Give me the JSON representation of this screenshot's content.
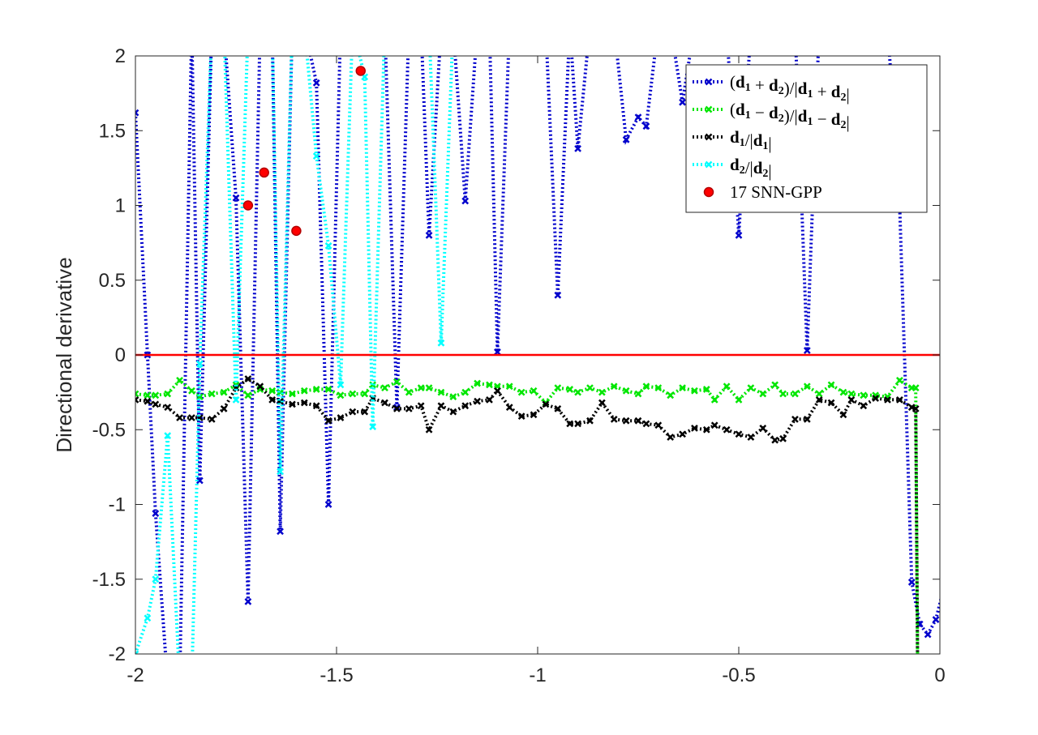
{
  "chart_data": {
    "type": "line",
    "title": "",
    "xlabel": "",
    "ylabel": "Directional derivative",
    "xlim": [
      -2,
      0
    ],
    "ylim": [
      -2,
      2
    ],
    "xticks": [
      -2,
      -1.5,
      -1,
      -0.5,
      0
    ],
    "xtick_labels": [
      "-2",
      "-1.5",
      "-1",
      "-0.5",
      "0"
    ],
    "yticks": [
      -2,
      -1.5,
      -1,
      -0.5,
      0,
      0.5,
      1,
      1.5,
      2
    ],
    "ytick_labels": [
      "-2",
      "-1.5",
      "-1",
      "-0.5",
      "0",
      "0.5",
      "1",
      "1.5",
      "2"
    ],
    "grid": false,
    "legend_position": "top-right",
    "series": [
      {
        "name": "(d1 + d2)/|d1 + d2|",
        "color": "#0000cc",
        "line_style": "dotted",
        "marker": "x",
        "x": [
          -2.0,
          -1.97,
          -1.95,
          -1.92,
          -1.89,
          -1.86,
          -1.84,
          -1.81,
          -1.78,
          -1.75,
          -1.72,
          -1.69,
          -1.66,
          -1.64,
          -1.61,
          -1.58,
          -1.55,
          -1.52,
          -1.49,
          -1.46,
          -1.43,
          -1.41,
          -1.38,
          -1.35,
          -1.32,
          -1.29,
          -1.27,
          -1.24,
          -1.21,
          -1.18,
          -1.15,
          -1.12,
          -1.1,
          -1.07,
          -1.04,
          -1.01,
          -0.98,
          -0.95,
          -0.92,
          -0.9,
          -0.87,
          -0.84,
          -0.81,
          -0.78,
          -0.75,
          -0.73,
          -0.7,
          -0.67,
          -0.64,
          -0.61,
          -0.58,
          -0.56,
          -0.53,
          -0.5,
          -0.47,
          -0.44,
          -0.41,
          -0.39,
          -0.36,
          -0.33,
          -0.3,
          -0.27,
          -0.24,
          -0.22,
          -0.19,
          -0.16,
          -0.13,
          -0.1,
          -0.07,
          -0.05,
          -0.03,
          -0.01,
          0.02
        ],
        "y": [
          1.62,
          0.0,
          -1.06,
          -2.2,
          -2.2,
          2.2,
          -0.84,
          2.2,
          2.2,
          1.05,
          -1.65,
          2.2,
          2.2,
          -1.18,
          2.2,
          2.2,
          1.82,
          -1.0,
          2.2,
          2.2,
          2.2,
          2.2,
          2.2,
          -0.35,
          2.2,
          2.2,
          0.8,
          2.2,
          2.2,
          1.03,
          2.2,
          2.2,
          0.02,
          2.2,
          2.2,
          2.2,
          2.2,
          0.4,
          2.2,
          1.38,
          2.2,
          2.2,
          2.2,
          1.44,
          1.59,
          1.53,
          2.2,
          2.2,
          1.69,
          2.2,
          2.2,
          2.2,
          2.2,
          0.8,
          2.2,
          2.2,
          2.2,
          2.2,
          2.2,
          0.03,
          2.2,
          2.2,
          2.2,
          2.2,
          2.2,
          2.2,
          2.2,
          1.0,
          -1.52,
          -1.8,
          -1.87,
          -1.77,
          -1.45
        ]
      },
      {
        "name": "(d1 - d2)/|d1 - d2|",
        "color": "#00e600",
        "line_style": "dotted",
        "marker": "x",
        "x": [
          -2.0,
          -1.97,
          -1.95,
          -1.92,
          -1.89,
          -1.86,
          -1.84,
          -1.81,
          -1.78,
          -1.75,
          -1.72,
          -1.69,
          -1.66,
          -1.64,
          -1.61,
          -1.58,
          -1.55,
          -1.52,
          -1.49,
          -1.46,
          -1.43,
          -1.41,
          -1.38,
          -1.35,
          -1.32,
          -1.29,
          -1.27,
          -1.24,
          -1.21,
          -1.18,
          -1.15,
          -1.12,
          -1.1,
          -1.07,
          -1.04,
          -1.01,
          -0.98,
          -0.95,
          -0.92,
          -0.9,
          -0.87,
          -0.84,
          -0.81,
          -0.78,
          -0.75,
          -0.73,
          -0.7,
          -0.67,
          -0.64,
          -0.61,
          -0.58,
          -0.56,
          -0.53,
          -0.5,
          -0.47,
          -0.44,
          -0.41,
          -0.39,
          -0.36,
          -0.33,
          -0.3,
          -0.27,
          -0.24,
          -0.22,
          -0.19,
          -0.16,
          -0.13,
          -0.1,
          -0.07,
          -0.06,
          -0.055
        ],
        "y": [
          -0.26,
          -0.27,
          -0.27,
          -0.26,
          -0.17,
          -0.24,
          -0.28,
          -0.26,
          -0.25,
          -0.2,
          -0.27,
          -0.23,
          -0.24,
          -0.25,
          -0.26,
          -0.24,
          -0.23,
          -0.23,
          -0.27,
          -0.26,
          -0.26,
          -0.2,
          -0.22,
          -0.18,
          -0.25,
          -0.22,
          -0.22,
          -0.25,
          -0.28,
          -0.25,
          -0.19,
          -0.2,
          -0.21,
          -0.21,
          -0.25,
          -0.24,
          -0.32,
          -0.22,
          -0.23,
          -0.25,
          -0.22,
          -0.25,
          -0.21,
          -0.24,
          -0.26,
          -0.21,
          -0.22,
          -0.27,
          -0.22,
          -0.24,
          -0.23,
          -0.3,
          -0.21,
          -0.3,
          -0.22,
          -0.26,
          -0.2,
          -0.26,
          -0.26,
          -0.21,
          -0.26,
          -0.2,
          -0.25,
          -0.26,
          -0.27,
          -0.27,
          -0.28,
          -0.17,
          -0.22,
          -0.22,
          -2.2
        ]
      },
      {
        "name": "d1/|d1|",
        "color": "#000000",
        "line_style": "dotted",
        "marker": "x",
        "x": [
          -2.0,
          -1.97,
          -1.95,
          -1.92,
          -1.89,
          -1.86,
          -1.84,
          -1.81,
          -1.78,
          -1.75,
          -1.72,
          -1.69,
          -1.66,
          -1.64,
          -1.61,
          -1.58,
          -1.55,
          -1.52,
          -1.49,
          -1.46,
          -1.43,
          -1.41,
          -1.38,
          -1.35,
          -1.32,
          -1.29,
          -1.27,
          -1.24,
          -1.21,
          -1.18,
          -1.15,
          -1.12,
          -1.1,
          -1.07,
          -1.04,
          -1.01,
          -0.98,
          -0.95,
          -0.92,
          -0.9,
          -0.87,
          -0.84,
          -0.81,
          -0.78,
          -0.75,
          -0.73,
          -0.7,
          -0.67,
          -0.64,
          -0.61,
          -0.58,
          -0.56,
          -0.53,
          -0.5,
          -0.47,
          -0.44,
          -0.41,
          -0.39,
          -0.36,
          -0.33,
          -0.3,
          -0.27,
          -0.24,
          -0.22,
          -0.19,
          -0.16,
          -0.13,
          -0.1,
          -0.07,
          -0.06,
          -0.055
        ],
        "y": [
          -0.3,
          -0.31,
          -0.33,
          -0.35,
          -0.42,
          -0.42,
          -0.42,
          -0.43,
          -0.36,
          -0.22,
          -0.16,
          -0.21,
          -0.3,
          -0.31,
          -0.33,
          -0.32,
          -0.34,
          -0.44,
          -0.42,
          -0.38,
          -0.38,
          -0.29,
          -0.32,
          -0.36,
          -0.36,
          -0.34,
          -0.5,
          -0.34,
          -0.38,
          -0.34,
          -0.31,
          -0.3,
          -0.24,
          -0.35,
          -0.41,
          -0.4,
          -0.33,
          -0.36,
          -0.46,
          -0.46,
          -0.44,
          -0.32,
          -0.43,
          -0.44,
          -0.44,
          -0.46,
          -0.47,
          -0.55,
          -0.53,
          -0.49,
          -0.5,
          -0.47,
          -0.5,
          -0.53,
          -0.55,
          -0.49,
          -0.57,
          -0.56,
          -0.43,
          -0.43,
          -0.3,
          -0.32,
          -0.4,
          -0.3,
          -0.34,
          -0.29,
          -0.3,
          -0.3,
          -0.35,
          -0.36,
          -2.2
        ]
      },
      {
        "name": "d2/|d2|",
        "color": "#00ffff",
        "line_style": "dotted",
        "marker": "x",
        "x": [
          -2.0,
          -1.97,
          -1.95,
          -1.92,
          -1.89,
          -1.86,
          -1.84,
          -1.81,
          -1.78,
          -1.75,
          -1.72,
          -1.69,
          -1.66,
          -1.64,
          -1.61,
          -1.58,
          -1.55,
          -1.52,
          -1.49,
          -1.46,
          -1.43,
          -1.41,
          -1.38,
          -1.35,
          -1.32,
          -1.29,
          -1.27,
          -1.24,
          -1.21,
          -1.18,
          -1.15,
          -1.12,
          -1.1
        ],
        "y": [
          -2.0,
          -1.76,
          -1.5,
          -0.54,
          -2.2,
          -2.2,
          -0.06,
          2.2,
          2.2,
          -0.3,
          2.2,
          2.2,
          2.2,
          -0.78,
          2.2,
          2.2,
          1.33,
          0.73,
          -0.2,
          2.2,
          1.86,
          -0.48,
          2.2,
          2.2,
          2.2,
          2.2,
          2.2,
          0.08,
          2.2,
          2.2,
          2.2,
          2.2,
          2.2
        ]
      },
      {
        "name": "17 SNN-GPP",
        "color": "#ff0000",
        "line_style": "none",
        "marker": "o",
        "x": [
          -1.72,
          -1.68,
          -1.6,
          -1.44
        ],
        "y": [
          1.0,
          1.22,
          0.83,
          1.9
        ]
      },
      {
        "name": "",
        "color": "#ff0000",
        "line_style": "solid",
        "marker": "none",
        "x": [
          -2.0,
          0.0
        ],
        "y": [
          0.0,
          0.0
        ]
      }
    ]
  },
  "legend": {
    "entries": [
      {
        "prefix": "(",
        "b1": "d",
        "s1": "1",
        "op": " + ",
        "b2": "d",
        "s2": "2",
        "mid": ")/|",
        "b3": "d",
        "s3": "1",
        "op2": " + ",
        "b4": "d",
        "s4": "2",
        "suffix": "|"
      },
      {
        "prefix": "(",
        "b1": "d",
        "s1": "1",
        "op": " − ",
        "b2": "d",
        "s2": "2",
        "mid": ")/|",
        "b3": "d",
        "s3": "1",
        "op2": " − ",
        "b4": "d",
        "s4": "2",
        "suffix": "|"
      },
      {
        "b1": "d",
        "s1": "1",
        "mid": "/|",
        "b3": "d",
        "s3": "1",
        "suffix": "|"
      },
      {
        "b1": "d",
        "s1": "2",
        "mid": "/|",
        "b3": "d",
        "s3": "2",
        "suffix": "|"
      },
      {
        "plain": "17 SNN-GPP"
      }
    ]
  }
}
